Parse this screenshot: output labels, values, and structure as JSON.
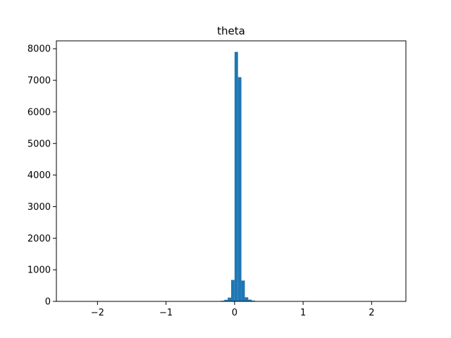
{
  "chart_data": {
    "type": "bar",
    "title": "theta",
    "xlabel": "",
    "ylabel": "",
    "xlim": [
      -2.6,
      2.5
    ],
    "ylim": [
      0,
      8000
    ],
    "grid": false,
    "bar_color": "#1f77b4",
    "bin_width": 0.05,
    "x_ticks": [
      {
        "value": -2,
        "label": "−2"
      },
      {
        "value": -1,
        "label": "−1"
      },
      {
        "value": 0,
        "label": "0"
      },
      {
        "value": 1,
        "label": "1"
      },
      {
        "value": 2,
        "label": "2"
      }
    ],
    "y_ticks": [
      {
        "value": 0,
        "label": "0"
      },
      {
        "value": 1000,
        "label": "1000"
      },
      {
        "value": 2000,
        "label": "2000"
      },
      {
        "value": 3000,
        "label": "3000"
      },
      {
        "value": 4000,
        "label": "4000"
      },
      {
        "value": 5000,
        "label": "5000"
      },
      {
        "value": 6000,
        "label": "6000"
      },
      {
        "value": 7000,
        "label": "7000"
      },
      {
        "value": 8000,
        "label": "8000"
      }
    ],
    "bins": [
      {
        "x0": -2.45,
        "count": 1
      },
      {
        "x0": -0.25,
        "count": 5
      },
      {
        "x0": -0.2,
        "count": 20
      },
      {
        "x0": -0.15,
        "count": 50
      },
      {
        "x0": -0.1,
        "count": 120
      },
      {
        "x0": -0.05,
        "count": 680
      },
      {
        "x0": 0.0,
        "count": 7900
      },
      {
        "x0": 0.05,
        "count": 7100
      },
      {
        "x0": 0.1,
        "count": 660
      },
      {
        "x0": 0.15,
        "count": 130
      },
      {
        "x0": 0.2,
        "count": 55
      },
      {
        "x0": 0.25,
        "count": 25
      },
      {
        "x0": 0.3,
        "count": 10
      },
      {
        "x0": 2.2,
        "count": 1
      }
    ]
  }
}
